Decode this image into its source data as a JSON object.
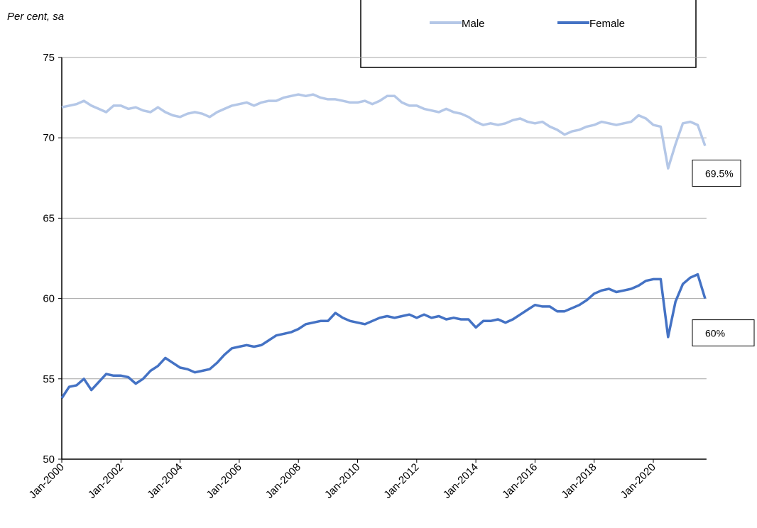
{
  "chart_data": {
    "type": "line",
    "y_axis_label": "Per cent, sa",
    "categories": [
      "Jan-2000",
      null,
      null,
      null,
      null,
      null,
      null,
      null,
      "Jan-2002",
      null,
      null,
      null,
      null,
      null,
      null,
      null,
      "Jan-2004",
      null,
      null,
      null,
      null,
      null,
      null,
      null,
      "Jan-2006",
      null,
      null,
      null,
      null,
      null,
      null,
      null,
      "Jan-2008",
      null,
      null,
      null,
      null,
      null,
      null,
      null,
      "Jan-2010",
      null,
      null,
      null,
      null,
      null,
      null,
      null,
      "Jan-2012",
      null,
      null,
      null,
      null,
      null,
      null,
      null,
      "Jan-2014",
      null,
      null,
      null,
      null,
      null,
      null,
      null,
      "Jan-2016",
      null,
      null,
      null,
      null,
      null,
      null,
      null,
      "Jan-2018",
      null,
      null,
      null,
      null,
      null,
      null,
      null,
      "Jan-2020",
      null,
      null,
      null,
      null,
      null,
      null,
      null
    ],
    "series": [
      {
        "name": "Male",
        "color": "#b4c7e7",
        "values": [
          71.9,
          72.0,
          72.1,
          72.3,
          72.0,
          71.8,
          71.6,
          72.0,
          72.0,
          71.8,
          71.9,
          71.7,
          71.6,
          71.9,
          71.6,
          71.4,
          71.3,
          71.5,
          71.6,
          71.5,
          71.3,
          71.6,
          71.8,
          72.0,
          72.1,
          72.2,
          72.0,
          72.2,
          72.3,
          72.3,
          72.5,
          72.6,
          72.7,
          72.6,
          72.7,
          72.5,
          72.4,
          72.4,
          72.3,
          72.2,
          72.2,
          72.3,
          72.1,
          72.3,
          72.6,
          72.6,
          72.2,
          72.0,
          72.0,
          71.8,
          71.7,
          71.6,
          71.8,
          71.6,
          71.5,
          71.3,
          71.0,
          70.8,
          70.9,
          70.8,
          70.9,
          71.1,
          71.2,
          71.0,
          70.9,
          71.0,
          70.7,
          70.5,
          70.2,
          70.4,
          70.5,
          70.7,
          70.8,
          71.0,
          70.9,
          70.8,
          70.9,
          71.0,
          71.4,
          71.2,
          70.8,
          70.7,
          68.1,
          69.6,
          70.9,
          71.0,
          70.8,
          69.5
        ]
      },
      {
        "name": "Female",
        "color": "#4472c4",
        "values": [
          53.8,
          54.5,
          54.6,
          55.0,
          54.3,
          54.8,
          55.3,
          55.2,
          55.2,
          55.1,
          54.7,
          55.0,
          55.5,
          55.8,
          56.3,
          56.0,
          55.7,
          55.6,
          55.4,
          55.5,
          55.6,
          56.0,
          56.5,
          56.9,
          57.0,
          57.1,
          57.0,
          57.1,
          57.4,
          57.7,
          57.8,
          57.9,
          58.1,
          58.4,
          58.5,
          58.6,
          58.6,
          59.1,
          58.8,
          58.6,
          58.5,
          58.4,
          58.6,
          58.8,
          58.9,
          58.8,
          58.9,
          59.0,
          58.8,
          59.0,
          58.8,
          58.9,
          58.7,
          58.8,
          58.7,
          58.7,
          58.2,
          58.6,
          58.6,
          58.7,
          58.5,
          58.7,
          59.0,
          59.3,
          59.6,
          59.5,
          59.5,
          59.2,
          59.2,
          59.4,
          59.6,
          59.9,
          60.3,
          60.5,
          60.6,
          60.4,
          60.5,
          60.6,
          60.8,
          61.1,
          61.2,
          61.2,
          57.6,
          59.8,
          60.9,
          61.3,
          61.5,
          60.0
        ]
      }
    ],
    "annotations": [
      "69.5%",
      "60%"
    ],
    "ylim": [
      50,
      75
    ],
    "yticks": [
      50,
      55,
      60,
      65,
      70,
      75
    ],
    "grid": true
  }
}
